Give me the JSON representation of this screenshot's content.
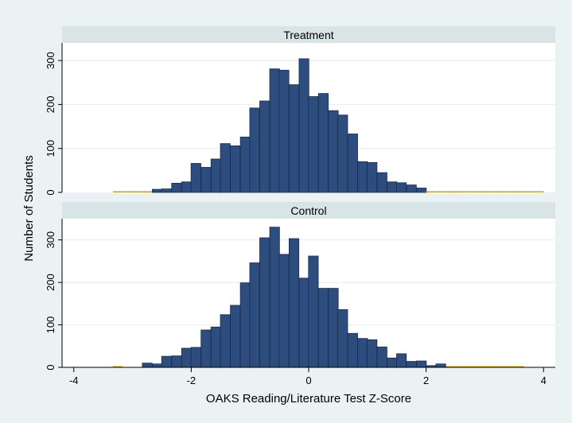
{
  "chart_data": [
    {
      "type": "bar",
      "panel_title": "Treatment",
      "bin_width": 0.1667,
      "x": [
        -3.25,
        -3.08,
        -2.92,
        -2.75,
        -2.58,
        -2.42,
        -2.25,
        -2.08,
        -1.92,
        -1.75,
        -1.58,
        -1.42,
        -1.25,
        -1.08,
        -0.92,
        -0.75,
        -0.58,
        -0.42,
        -0.25,
        -0.08,
        0.08,
        0.25,
        0.42,
        0.58,
        0.75,
        0.92,
        1.08,
        1.25,
        1.42,
        1.58,
        1.75,
        1.92,
        2.08,
        2.25,
        2.42,
        2.58,
        2.75,
        2.92,
        3.08,
        3.25,
        3.42,
        3.58,
        3.75,
        3.92
      ],
      "values": [
        2,
        2,
        2,
        2,
        7,
        8,
        21,
        24,
        66,
        57,
        76,
        111,
        106,
        126,
        192,
        208,
        281,
        278,
        245,
        304,
        218,
        225,
        186,
        176,
        133,
        70,
        68,
        45,
        24,
        22,
        17,
        10,
        2,
        2,
        2,
        2,
        2,
        2,
        2,
        2,
        2,
        2,
        2,
        2
      ],
      "bar_fill": "#2e4d7f",
      "bar_stroke": "#1a2c4a",
      "thin_bar_color": "#d6a000",
      "ylim": [
        0,
        340
      ],
      "yticks": [
        0,
        100,
        200,
        300
      ],
      "xlim": [
        -4.2,
        4.2
      ],
      "xticks": [
        -4,
        -2,
        0,
        2,
        4
      ]
    },
    {
      "type": "bar",
      "panel_title": "Control",
      "bin_width": 0.1667,
      "x": [
        -3.25,
        -2.75,
        -2.58,
        -2.42,
        -2.25,
        -2.08,
        -1.92,
        -1.75,
        -1.58,
        -1.42,
        -1.25,
        -1.08,
        -0.92,
        -0.75,
        -0.58,
        -0.42,
        -0.25,
        -0.08,
        0.08,
        0.25,
        0.42,
        0.58,
        0.75,
        0.92,
        1.08,
        1.25,
        1.42,
        1.58,
        1.75,
        1.92,
        2.08,
        2.25,
        2.42,
        2.58,
        2.75,
        2.92,
        3.08,
        3.25,
        3.42,
        3.58
      ],
      "values": [
        2,
        10,
        8,
        26,
        27,
        45,
        47,
        88,
        95,
        124,
        146,
        199,
        246,
        305,
        330,
        266,
        303,
        210,
        262,
        186,
        186,
        136,
        80,
        68,
        65,
        48,
        22,
        32,
        14,
        15,
        4,
        8,
        2,
        2,
        2,
        2,
        2,
        2,
        2,
        2
      ],
      "bar_fill": "#2e4d7f",
      "bar_stroke": "#1a2c4a",
      "thin_bar_color": "#d6a000",
      "ylim": [
        0,
        350
      ],
      "yticks": [
        0,
        100,
        200,
        300
      ],
      "xlim": [
        -4.2,
        4.2
      ],
      "xticks": [
        -4,
        -2,
        0,
        2,
        4
      ]
    }
  ],
  "axis": {
    "xlabel": "OAKS Reading/Literature Test Z-Score",
    "ylabel": "Number of Students"
  },
  "colors": {
    "background": "#eaf2f3",
    "plot_area": "#ffffff",
    "strip": "#d9e4e6",
    "gridline": "#e4eef0"
  }
}
